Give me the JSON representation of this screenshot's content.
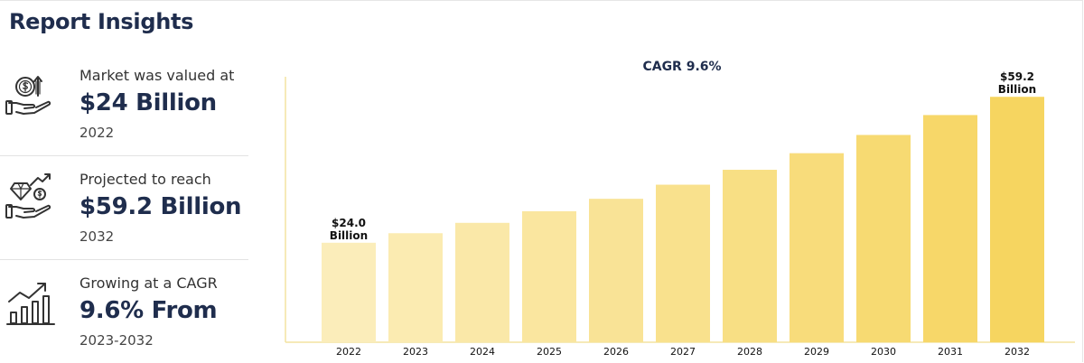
{
  "header": {
    "title": "Report Insights"
  },
  "insights": [
    {
      "icon": "money-hand-icon",
      "label": "Market was valued at",
      "value": "$24 Billion",
      "sub": "2022"
    },
    {
      "icon": "diamond-hand-icon",
      "label": "Projected to reach",
      "value": "$59.2 Billion",
      "sub": "2032"
    },
    {
      "icon": "growth-chart-icon",
      "label": "Growing at a CAGR",
      "value": "9.6% From",
      "sub": "2023-2032"
    }
  ],
  "colors": {
    "title": "#1f2d4d",
    "bar_light": "#fbedba",
    "bar_dark": "#f6d560",
    "axis": "#f3e3a0",
    "icon": "#333333"
  },
  "chart_data": {
    "type": "bar",
    "title": "CAGR 9.6%",
    "categories": [
      "2022",
      "2023",
      "2024",
      "2025",
      "2026",
      "2027",
      "2028",
      "2029",
      "2030",
      "2031",
      "2032"
    ],
    "values": [
      24.0,
      26.3,
      28.8,
      31.6,
      34.6,
      38.0,
      41.6,
      45.6,
      50.0,
      54.8,
      59.2
    ],
    "ylim": [
      0,
      66
    ],
    "xlabel": "",
    "ylabel": "",
    "data_labels": [
      {
        "index": 0,
        "line1": "$24.0",
        "line2": "Billion"
      },
      {
        "index": 10,
        "line1": "$59.2",
        "line2": "Billion"
      }
    ]
  }
}
